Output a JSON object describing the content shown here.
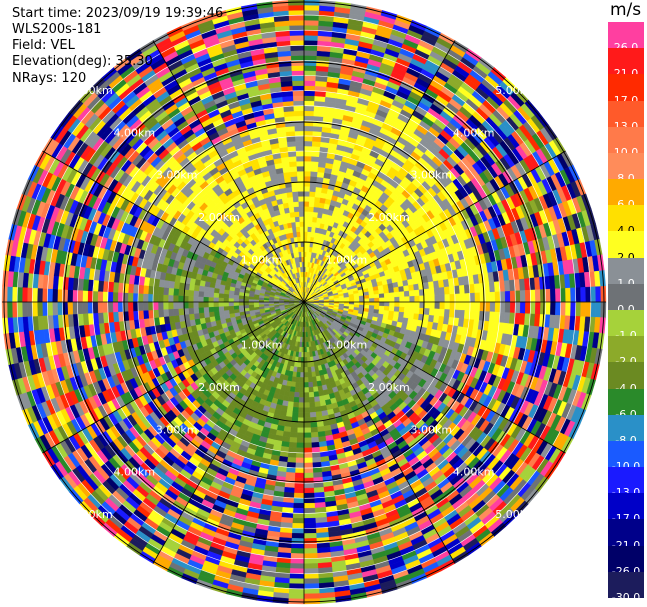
{
  "header": {
    "start_time": "Start time: 2023/09/19 19:39:46",
    "instrument": "WLS200s-181",
    "field": "Field: VEL",
    "elevation": "Elevation(deg): 35.30",
    "nrays": "NRays: 120"
  },
  "colorbar": {
    "unit": "m/s",
    "levels": [
      {
        "label": "26.0",
        "color": "#ff3fa0",
        "text_color": "#ffffff"
      },
      {
        "label": "21.0",
        "color": "#ff1a1a",
        "text_color": "#ffffff"
      },
      {
        "label": "17.0",
        "color": "#ff2a00",
        "text_color": "#ffffff"
      },
      {
        "label": "13.0",
        "color": "#ff5a2a",
        "text_color": "#ffffff"
      },
      {
        "label": "10.0",
        "color": "#ff7a4a",
        "text_color": "#ffffff"
      },
      {
        "label": "8.0",
        "color": "#ff8c5a",
        "text_color": "#ffffff"
      },
      {
        "label": "6.0",
        "color": "#ffaa00",
        "text_color": "#ffffff"
      },
      {
        "label": "4.0",
        "color": "#ffe000",
        "text_color": "#000000"
      },
      {
        "label": "2.0",
        "color": "#ffff20",
        "text_color": "#000000"
      },
      {
        "label": "1.0",
        "color": "#8a9096",
        "text_color": "#ffffff"
      },
      {
        "label": "0.0",
        "color": "#6e7276",
        "text_color": "#ffffff"
      },
      {
        "label": "-1.0",
        "color": "#a6d23a",
        "text_color": "#ffffff"
      },
      {
        "label": "-2.0",
        "color": "#8caa2a",
        "text_color": "#ffffff"
      },
      {
        "label": "-4.0",
        "color": "#6b8a22",
        "text_color": "#ffffff"
      },
      {
        "label": "-6.0",
        "color": "#2a8a2a",
        "text_color": "#ffffff"
      },
      {
        "label": "-8.0",
        "color": "#2a90c8",
        "text_color": "#ffffff"
      },
      {
        "label": "-10.0",
        "color": "#1a5aff",
        "text_color": "#ffffff"
      },
      {
        "label": "-13.0",
        "color": "#1a1aff",
        "text_color": "#ffffff"
      },
      {
        "label": "-17.0",
        "color": "#0000c8",
        "text_color": "#ffffff"
      },
      {
        "label": "-21.0",
        "color": "#00008a",
        "text_color": "#ffffff"
      },
      {
        "label": "-26.0",
        "color": "#000068",
        "text_color": "#ffffff"
      },
      {
        "label": "-30.0",
        "color": "#1c1c5c",
        "text_color": "#ffffff"
      }
    ]
  },
  "range_rings": [
    {
      "label": "1.00km"
    },
    {
      "label": "2.00km"
    },
    {
      "label": "3.00km"
    },
    {
      "label": "4.00km"
    },
    {
      "label": "5.00km"
    }
  ]
}
